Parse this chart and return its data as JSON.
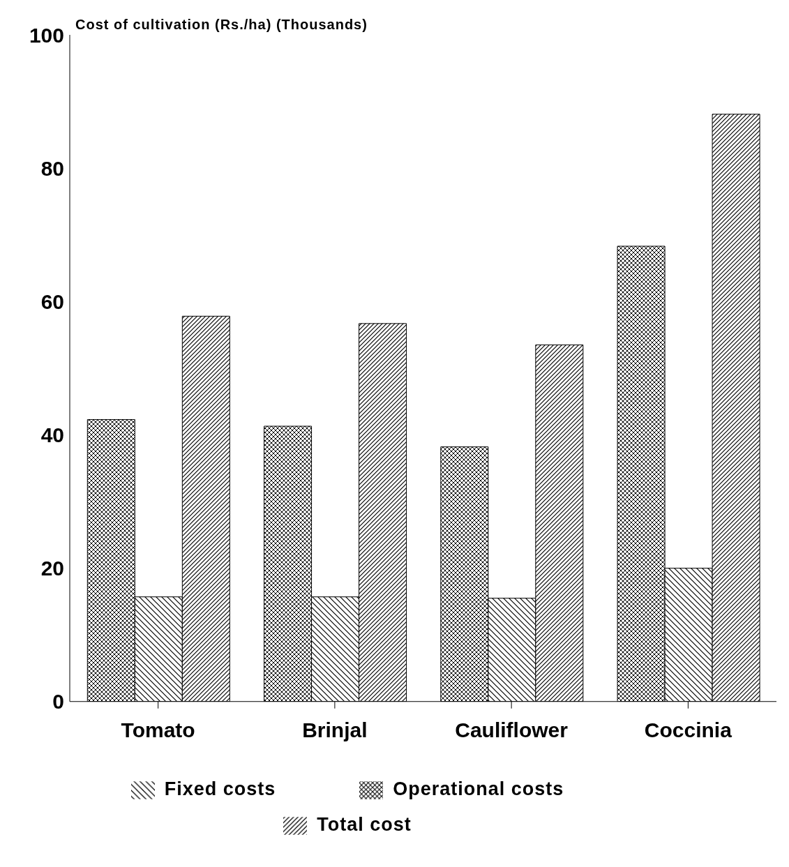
{
  "chart_data": {
    "type": "bar",
    "ylabel": "Cost of cultivation (Rs./ha) (Thousands)",
    "categories": [
      "Tomato",
      "Brinjal",
      "Cauliflower",
      "Coccinia"
    ],
    "series": [
      {
        "name": "Operational costs",
        "color": "#000000",
        "values": [
          42.3,
          41.3,
          38.2,
          68.3
        ]
      },
      {
        "name": "Fixed costs",
        "color": "#000000",
        "values": [
          15.7,
          15.7,
          15.5,
          20.0
        ]
      },
      {
        "name": "Total cost",
        "color": "#000000",
        "values": [
          57.8,
          56.7,
          53.5,
          88.1
        ]
      }
    ],
    "ylim": [
      0,
      100
    ],
    "yticks": [
      0,
      20,
      40,
      60,
      80,
      100
    ],
    "grid": false,
    "legend": "bottom"
  }
}
